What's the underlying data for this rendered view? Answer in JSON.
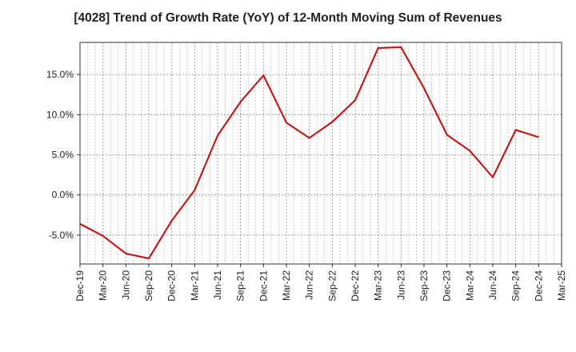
{
  "chart_data": {
    "type": "line",
    "title": "[4028]  Trend of Growth Rate (YoY) of 12-Month Moving Sum of Revenues",
    "xlabel": "",
    "ylabel": "",
    "x_ticks": [
      "Dec-19",
      "Mar-20",
      "Jun-20",
      "Sep-20",
      "Dec-20",
      "Mar-21",
      "Jun-21",
      "Sep-21",
      "Dec-21",
      "Mar-22",
      "Jun-22",
      "Sep-22",
      "Dec-22",
      "Mar-23",
      "Jun-23",
      "Sep-23",
      "Dec-23",
      "Mar-24",
      "Jun-24",
      "Sep-24",
      "Dec-24",
      "Mar-25"
    ],
    "y_ticks": [
      "-5.0%",
      "0.0%",
      "5.0%",
      "10.0%",
      "15.0%"
    ],
    "y_tick_values": [
      -5,
      0,
      5,
      10,
      15
    ],
    "ylim": [
      -8.6,
      19.0
    ],
    "grid": true,
    "line_color": "#e00000",
    "series": [
      {
        "name": "",
        "x": [
          "Dec-19",
          "Mar-20",
          "Jun-20",
          "Sep-20",
          "Dec-20",
          "Mar-21",
          "Jun-21",
          "Sep-21",
          "Dec-21",
          "Mar-22",
          "Jun-22",
          "Sep-22",
          "Dec-22",
          "Mar-23",
          "Jun-23",
          "Sep-23",
          "Dec-23",
          "Mar-24",
          "Jun-24",
          "Sep-24",
          "Dec-24"
        ],
        "values": [
          -3.6,
          -5.1,
          -7.3,
          -7.9,
          -3.2,
          0.6,
          7.4,
          11.6,
          14.9,
          9.0,
          7.1,
          9.1,
          11.8,
          18.3,
          18.4,
          13.3,
          7.5,
          5.5,
          2.2,
          8.1,
          7.2
        ]
      }
    ]
  }
}
